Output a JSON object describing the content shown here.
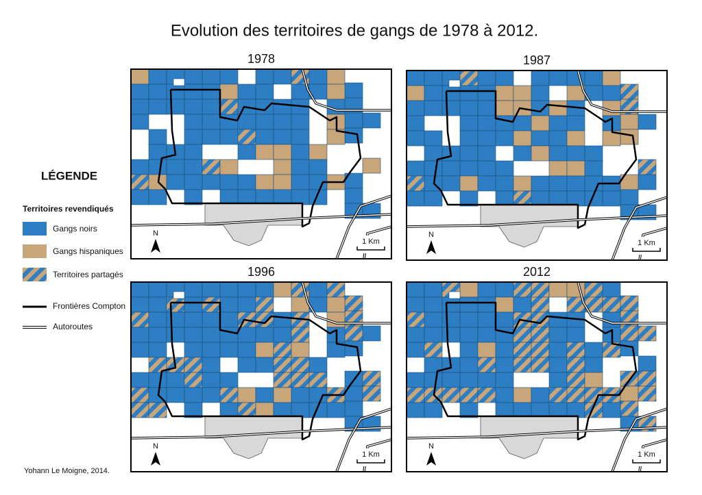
{
  "title": "Evolution des territoires de gangs de 1978 à 2012.",
  "legend": {
    "heading": "LÉGENDE",
    "subheading": "Territoires revendiqués",
    "items": [
      "Gangs noirs",
      "Gangs hispaniques",
      "Territoires partagés",
      "Frontières Compton",
      "Autoroutes"
    ]
  },
  "maps": [
    {
      "year": "1978",
      "north": "N",
      "scale": "1 Km"
    },
    {
      "year": "1987",
      "north": "N",
      "scale": "1 Km"
    },
    {
      "year": "1996",
      "north": "N",
      "scale": "1 Km"
    },
    {
      "year": "2012",
      "north": "N",
      "scale": "1 Km"
    }
  ],
  "credit": "Yohann Le Moigne, 2014."
}
